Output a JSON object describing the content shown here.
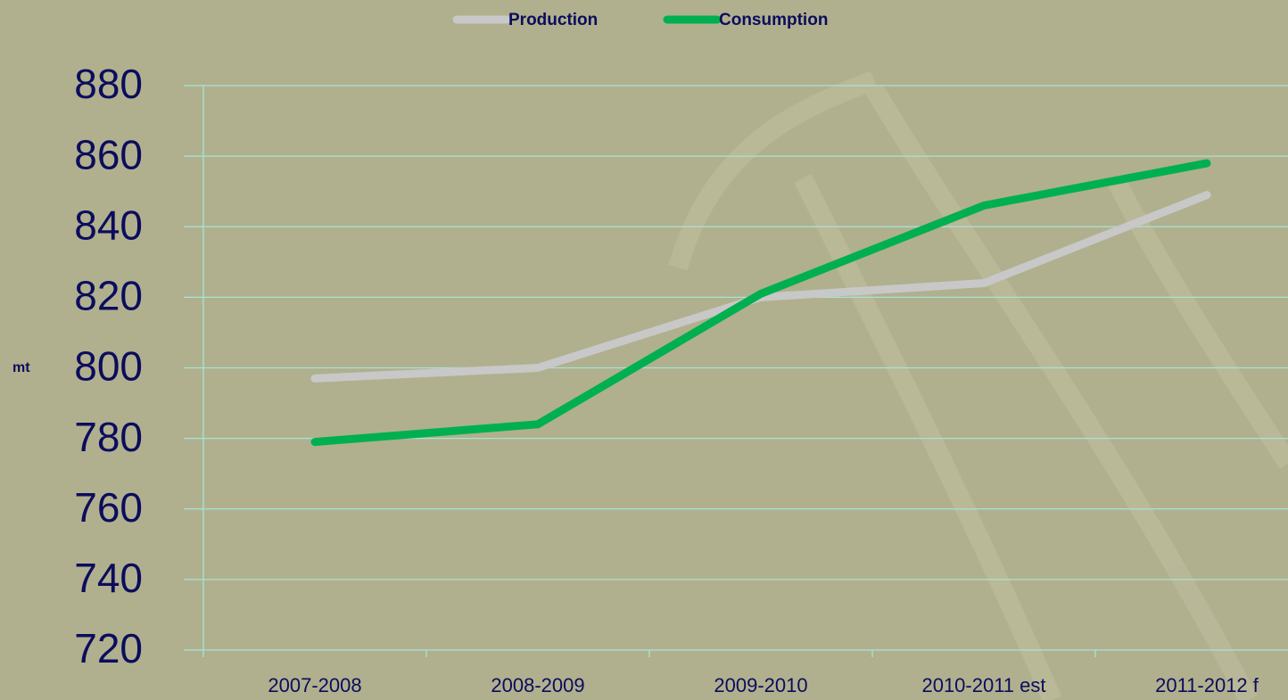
{
  "chart_data": {
    "type": "line",
    "y_label": "mt",
    "categories": [
      "2007-2008",
      "2008-2009",
      "2009-2010",
      "2010-2011 est",
      "2011-2012 f"
    ],
    "series": [
      {
        "name": "Production",
        "color": "#c8c8c8",
        "values": [
          797,
          800,
          820,
          824,
          849
        ]
      },
      {
        "name": "Consumption",
        "color": "#00b050",
        "values": [
          779,
          784,
          821,
          846,
          858
        ]
      }
    ],
    "ylim": [
      720,
      880
    ],
    "yticks": [
      720,
      740,
      760,
      780,
      800,
      820,
      840,
      860,
      880
    ],
    "grid": true,
    "legend": "top"
  }
}
